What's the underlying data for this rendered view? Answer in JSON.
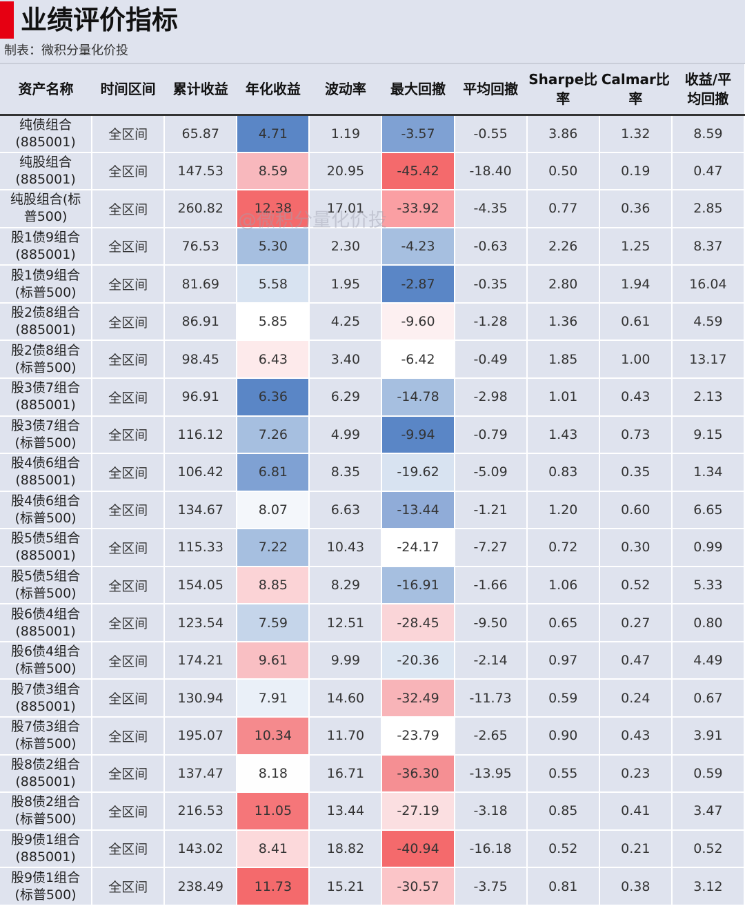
{
  "title": "业绩评价指标",
  "subtitle": "制表：微积分量化价投",
  "watermark": "@微积分量化价投",
  "columns": [
    "资产名称",
    "时间区间",
    "累计收益",
    "年化收益",
    "波动率",
    "最大回撤",
    "平均回撤",
    "Sharpe比率",
    "Calmar比率",
    "收益/平均回撤"
  ],
  "column_display": [
    [
      "资产名称"
    ],
    [
      "时间区间"
    ],
    [
      "累计收益"
    ],
    [
      "年化收益"
    ],
    [
      "波动率"
    ],
    [
      "最大回撤"
    ],
    [
      "平均回撤"
    ],
    [
      "Sharpe比",
      "率"
    ],
    [
      "Calmar比",
      "率"
    ],
    [
      "收益/平",
      "均回撤"
    ]
  ],
  "rows": [
    {
      "name": [
        "纯债组合",
        "(885001)"
      ],
      "period": "全区间",
      "values": [
        "65.87",
        "4.71",
        "1.19",
        "-3.57",
        "-0.55",
        "3.86",
        "1.32",
        "8.59"
      ]
    },
    {
      "name": [
        "纯股组合",
        "(885001)"
      ],
      "period": "全区间",
      "values": [
        "147.53",
        "8.59",
        "20.95",
        "-45.42",
        "-18.40",
        "0.50",
        "0.19",
        "0.47"
      ]
    },
    {
      "name": [
        "纯股组合(标",
        "普500)"
      ],
      "period": "全区间",
      "values": [
        "260.82",
        "12.38",
        "17.01",
        "-33.92",
        "-4.35",
        "0.77",
        "0.36",
        "2.85"
      ]
    },
    {
      "name": [
        "股1债9组合",
        "(885001)"
      ],
      "period": "全区间",
      "values": [
        "76.53",
        "5.30",
        "2.30",
        "-4.23",
        "-0.63",
        "2.26",
        "1.25",
        "8.37"
      ]
    },
    {
      "name": [
        "股1债9组合",
        "(标普500)"
      ],
      "period": "全区间",
      "values": [
        "81.69",
        "5.58",
        "1.95",
        "-2.87",
        "-0.35",
        "2.80",
        "1.94",
        "16.04"
      ]
    },
    {
      "name": [
        "股2债8组合",
        "(885001)"
      ],
      "period": "全区间",
      "values": [
        "86.91",
        "5.85",
        "4.25",
        "-9.60",
        "-1.28",
        "1.36",
        "0.61",
        "4.59"
      ]
    },
    {
      "name": [
        "股2债8组合",
        "(标普500)"
      ],
      "period": "全区间",
      "values": [
        "98.45",
        "6.43",
        "3.40",
        "-6.42",
        "-0.49",
        "1.85",
        "1.00",
        "13.17"
      ]
    },
    {
      "name": [
        "股3债7组合",
        "(885001)"
      ],
      "period": "全区间",
      "values": [
        "96.91",
        "6.36",
        "6.29",
        "-14.78",
        "-2.98",
        "1.01",
        "0.43",
        "2.13"
      ]
    },
    {
      "name": [
        "股3债7组合",
        "(标普500)"
      ],
      "period": "全区间",
      "values": [
        "116.12",
        "7.26",
        "4.99",
        "-9.94",
        "-0.79",
        "1.43",
        "0.73",
        "9.15"
      ]
    },
    {
      "name": [
        "股4债6组合",
        "(885001)"
      ],
      "period": "全区间",
      "values": [
        "106.42",
        "6.81",
        "8.35",
        "-19.62",
        "-5.09",
        "0.83",
        "0.35",
        "1.34"
      ]
    },
    {
      "name": [
        "股4债6组合",
        "(标普500)"
      ],
      "period": "全区间",
      "values": [
        "134.67",
        "8.07",
        "6.63",
        "-13.44",
        "-1.21",
        "1.20",
        "0.60",
        "6.65"
      ]
    },
    {
      "name": [
        "股5债5组合",
        "(885001)"
      ],
      "period": "全区间",
      "values": [
        "115.33",
        "7.22",
        "10.43",
        "-24.17",
        "-7.27",
        "0.72",
        "0.30",
        "0.99"
      ]
    },
    {
      "name": [
        "股5债5组合",
        "(标普500)"
      ],
      "period": "全区间",
      "values": [
        "154.05",
        "8.85",
        "8.29",
        "-16.91",
        "-1.66",
        "1.06",
        "0.52",
        "5.33"
      ]
    },
    {
      "name": [
        "股6债4组合",
        "(885001)"
      ],
      "period": "全区间",
      "values": [
        "123.54",
        "7.59",
        "12.51",
        "-28.45",
        "-9.50",
        "0.65",
        "0.27",
        "0.80"
      ]
    },
    {
      "name": [
        "股6债4组合",
        "(标普500)"
      ],
      "period": "全区间",
      "values": [
        "174.21",
        "9.61",
        "9.99",
        "-20.36",
        "-2.14",
        "0.97",
        "0.47",
        "4.49"
      ]
    },
    {
      "name": [
        "股7债3组合",
        "(885001)"
      ],
      "period": "全区间",
      "values": [
        "130.94",
        "7.91",
        "14.60",
        "-32.49",
        "-11.73",
        "0.59",
        "0.24",
        "0.67"
      ]
    },
    {
      "name": [
        "股7债3组合",
        "(标普500)"
      ],
      "period": "全区间",
      "values": [
        "195.07",
        "10.34",
        "11.70",
        "-23.79",
        "-2.65",
        "0.90",
        "0.43",
        "3.91"
      ]
    },
    {
      "name": [
        "股8债2组合",
        "(885001)"
      ],
      "period": "全区间",
      "values": [
        "137.47",
        "8.18",
        "16.71",
        "-36.30",
        "-13.95",
        "0.55",
        "0.23",
        "0.59"
      ]
    },
    {
      "name": [
        "股8债2组合",
        "(标普500)"
      ],
      "period": "全区间",
      "values": [
        "216.53",
        "11.05",
        "13.44",
        "-27.19",
        "-3.18",
        "0.85",
        "0.41",
        "3.47"
      ]
    },
    {
      "name": [
        "股9债1组合",
        "(885001)"
      ],
      "period": "全区间",
      "values": [
        "143.02",
        "8.41",
        "18.82",
        "-40.94",
        "-16.18",
        "0.52",
        "0.21",
        "0.52"
      ]
    },
    {
      "name": [
        "股9债1组合",
        "(标普500)"
      ],
      "period": "全区间",
      "values": [
        "238.49",
        "11.73",
        "15.21",
        "-30.57",
        "-3.75",
        "0.81",
        "0.38",
        "3.12"
      ]
    }
  ],
  "heat_colors": {
    "annual_return": [
      "#5a86c6",
      "#f8b8bd",
      "#f46a6c",
      "#a6bfe0",
      "#d8e3f1",
      "#ffffff",
      "#fdeaeb",
      "#5a86c6",
      "#a6bfe0",
      "#7fa1d3",
      "#f4f7fb",
      "#a6bfe0",
      "#fbd3d6",
      "#c5d5ea",
      "#f9bfc3",
      "#eaf0f8",
      "#f58a8d",
      "#fefefe",
      "#f57679",
      "#fcd9db",
      "#f46a6c"
    ],
    "max_drawdown": [
      "#7fa1d3",
      "#f46a6c",
      "#fa9fa3",
      "#a6bfe0",
      "#5a86c6",
      "#fdf0f1",
      "#ffffff",
      "#a6bfe0",
      "#5a86c6",
      "#d8e3f1",
      "#90acd8",
      "#ffffff",
      "#a6bfe0",
      "#fad5d8",
      "#dce6f2",
      "#f8b4b8",
      "#ffffff",
      "#f58f93",
      "#fbdfe1",
      "#f46a6c",
      "#fbc5c8"
    ]
  }
}
